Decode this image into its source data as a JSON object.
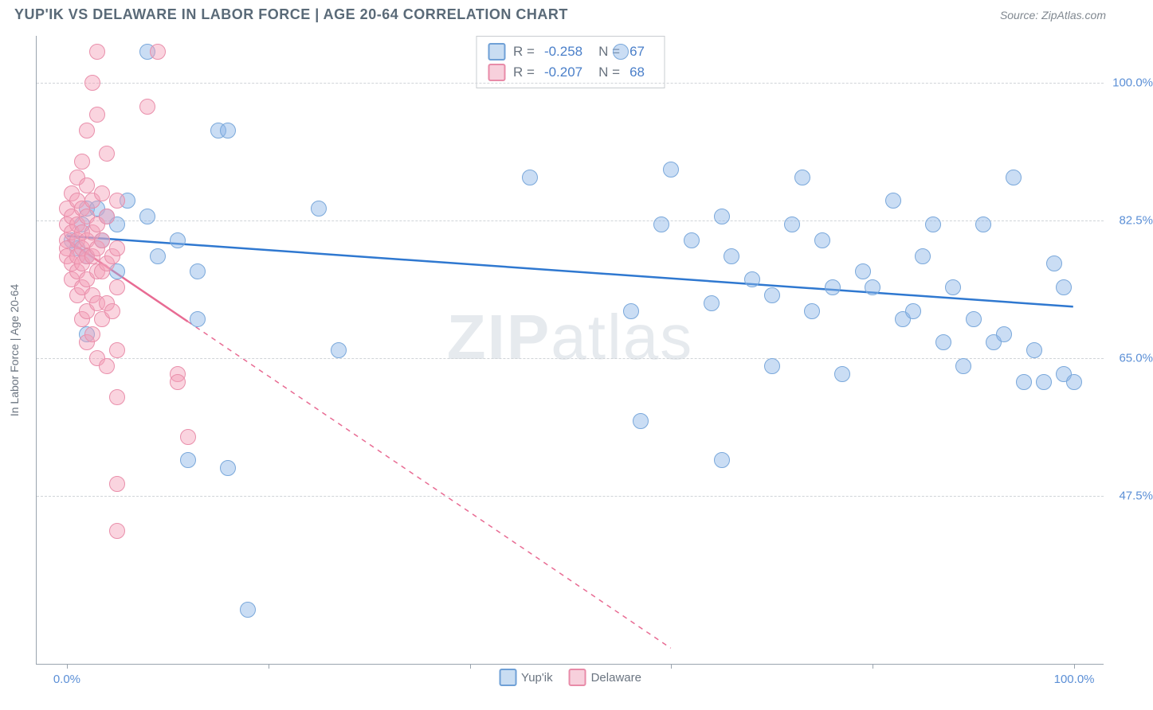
{
  "header": {
    "title": "YUP'IK VS DELAWARE IN LABOR FORCE | AGE 20-64 CORRELATION CHART",
    "source": "Source: ZipAtlas.com"
  },
  "watermark": {
    "part1": "ZIP",
    "part2": "atlas"
  },
  "chart": {
    "type": "scatter",
    "y_axis_label": "In Labor Force | Age 20-64",
    "background_color": "#ffffff",
    "grid_color": "#d0d4d8",
    "axis_color": "#9aa4ae",
    "tick_label_color": "#5b8fd6",
    "x_range": [
      -3,
      103
    ],
    "y_range": [
      26,
      106
    ],
    "y_ticks": [
      {
        "value": 47.5,
        "label": "47.5%"
      },
      {
        "value": 65.0,
        "label": "65.0%"
      },
      {
        "value": 82.5,
        "label": "82.5%"
      },
      {
        "value": 100.0,
        "label": "100.0%"
      }
    ],
    "x_ticks": [
      0,
      20,
      40,
      60,
      80,
      100
    ],
    "x_tick_labels": [
      {
        "value": 0,
        "label": "0.0%"
      },
      {
        "value": 100,
        "label": "100.0%"
      }
    ],
    "marker_radius": 10,
    "series": [
      {
        "name": "Yup'ik",
        "fill_color": "rgba(138,180,230,0.45)",
        "stroke_color": "#7aa8db",
        "swatch_fill": "#c9ddf2",
        "swatch_border": "#6fa0d6",
        "R": "-0.258",
        "N": "67",
        "regression": {
          "color": "#2f78d0",
          "width": 2.5,
          "dash_from_x": null,
          "start": {
            "x": 0,
            "y": 80.5
          },
          "end": {
            "x": 100,
            "y": 71.5
          }
        },
        "points": [
          {
            "x": 0.5,
            "y": 80
          },
          {
            "x": 1,
            "y": 79
          },
          {
            "x": 1.5,
            "y": 82
          },
          {
            "x": 2,
            "y": 84
          },
          {
            "x": 2,
            "y": 78
          },
          {
            "x": 2,
            "y": 68
          },
          {
            "x": 3,
            "y": 84
          },
          {
            "x": 3.5,
            "y": 80
          },
          {
            "x": 4,
            "y": 83
          },
          {
            "x": 5,
            "y": 82
          },
          {
            "x": 5,
            "y": 76
          },
          {
            "x": 6,
            "y": 85
          },
          {
            "x": 8,
            "y": 104
          },
          {
            "x": 8,
            "y": 83
          },
          {
            "x": 9,
            "y": 78
          },
          {
            "x": 11,
            "y": 80
          },
          {
            "x": 12,
            "y": 52
          },
          {
            "x": 13,
            "y": 76
          },
          {
            "x": 13,
            "y": 70
          },
          {
            "x": 15,
            "y": 94
          },
          {
            "x": 16,
            "y": 94
          },
          {
            "x": 16,
            "y": 51
          },
          {
            "x": 18,
            "y": 33
          },
          {
            "x": 25,
            "y": 84
          },
          {
            "x": 27,
            "y": 66
          },
          {
            "x": 46,
            "y": 88
          },
          {
            "x": 55,
            "y": 104
          },
          {
            "x": 56,
            "y": 71
          },
          {
            "x": 57,
            "y": 57
          },
          {
            "x": 59,
            "y": 82
          },
          {
            "x": 60,
            "y": 89
          },
          {
            "x": 62,
            "y": 80
          },
          {
            "x": 64,
            "y": 72
          },
          {
            "x": 65,
            "y": 83
          },
          {
            "x": 65,
            "y": 52
          },
          {
            "x": 66,
            "y": 78
          },
          {
            "x": 68,
            "y": 75
          },
          {
            "x": 70,
            "y": 73
          },
          {
            "x": 70,
            "y": 64
          },
          {
            "x": 72,
            "y": 82
          },
          {
            "x": 73,
            "y": 88
          },
          {
            "x": 74,
            "y": 71
          },
          {
            "x": 75,
            "y": 80
          },
          {
            "x": 76,
            "y": 74
          },
          {
            "x": 77,
            "y": 63
          },
          {
            "x": 79,
            "y": 76
          },
          {
            "x": 80,
            "y": 74
          },
          {
            "x": 82,
            "y": 85
          },
          {
            "x": 83,
            "y": 70
          },
          {
            "x": 84,
            "y": 71
          },
          {
            "x": 85,
            "y": 78
          },
          {
            "x": 86,
            "y": 82
          },
          {
            "x": 87,
            "y": 67
          },
          {
            "x": 88,
            "y": 74
          },
          {
            "x": 89,
            "y": 64
          },
          {
            "x": 90,
            "y": 70
          },
          {
            "x": 91,
            "y": 82
          },
          {
            "x": 92,
            "y": 67
          },
          {
            "x": 93,
            "y": 68
          },
          {
            "x": 94,
            "y": 88
          },
          {
            "x": 95,
            "y": 62
          },
          {
            "x": 96,
            "y": 66
          },
          {
            "x": 97,
            "y": 62
          },
          {
            "x": 98,
            "y": 77
          },
          {
            "x": 99,
            "y": 74
          },
          {
            "x": 99,
            "y": 63
          },
          {
            "x": 100,
            "y": 62
          }
        ]
      },
      {
        "name": "Delaware",
        "fill_color": "rgba(244,160,185,0.45)",
        "stroke_color": "#e98fab",
        "swatch_fill": "#f7d0dc",
        "swatch_border": "#e88ba8",
        "R": "-0.207",
        "N": "68",
        "regression": {
          "color": "#e86b93",
          "width": 2.5,
          "dash_from_x": 12,
          "start": {
            "x": 0,
            "y": 80
          },
          "end": {
            "x": 60,
            "y": 28
          }
        },
        "points": [
          {
            "x": 0,
            "y": 84
          },
          {
            "x": 0,
            "y": 82
          },
          {
            "x": 0,
            "y": 80
          },
          {
            "x": 0,
            "y": 79
          },
          {
            "x": 0,
            "y": 78
          },
          {
            "x": 0.5,
            "y": 86
          },
          {
            "x": 0.5,
            "y": 83
          },
          {
            "x": 0.5,
            "y": 81
          },
          {
            "x": 0.5,
            "y": 77
          },
          {
            "x": 0.5,
            "y": 75
          },
          {
            "x": 1,
            "y": 88
          },
          {
            "x": 1,
            "y": 85
          },
          {
            "x": 1,
            "y": 82
          },
          {
            "x": 1,
            "y": 80
          },
          {
            "x": 1,
            "y": 78
          },
          {
            "x": 1,
            "y": 76
          },
          {
            "x": 1,
            "y": 73
          },
          {
            "x": 1.5,
            "y": 90
          },
          {
            "x": 1.5,
            "y": 84
          },
          {
            "x": 1.5,
            "y": 81
          },
          {
            "x": 1.5,
            "y": 79
          },
          {
            "x": 1.5,
            "y": 77
          },
          {
            "x": 1.5,
            "y": 74
          },
          {
            "x": 1.5,
            "y": 70
          },
          {
            "x": 2,
            "y": 94
          },
          {
            "x": 2,
            "y": 87
          },
          {
            "x": 2,
            "y": 83
          },
          {
            "x": 2,
            "y": 80
          },
          {
            "x": 2,
            "y": 78
          },
          {
            "x": 2,
            "y": 75
          },
          {
            "x": 2,
            "y": 71
          },
          {
            "x": 2,
            "y": 67
          },
          {
            "x": 2.5,
            "y": 100
          },
          {
            "x": 2.5,
            "y": 85
          },
          {
            "x": 2.5,
            "y": 81
          },
          {
            "x": 2.5,
            "y": 78
          },
          {
            "x": 2.5,
            "y": 73
          },
          {
            "x": 2.5,
            "y": 68
          },
          {
            "x": 3,
            "y": 104
          },
          {
            "x": 3,
            "y": 96
          },
          {
            "x": 3,
            "y": 82
          },
          {
            "x": 3,
            "y": 79
          },
          {
            "x": 3,
            "y": 76
          },
          {
            "x": 3,
            "y": 72
          },
          {
            "x": 3,
            "y": 65
          },
          {
            "x": 3.5,
            "y": 86
          },
          {
            "x": 3.5,
            "y": 80
          },
          {
            "x": 3.5,
            "y": 76
          },
          {
            "x": 3.5,
            "y": 70
          },
          {
            "x": 4,
            "y": 91
          },
          {
            "x": 4,
            "y": 83
          },
          {
            "x": 4,
            "y": 77
          },
          {
            "x": 4,
            "y": 72
          },
          {
            "x": 4,
            "y": 64
          },
          {
            "x": 4.5,
            "y": 78
          },
          {
            "x": 4.5,
            "y": 71
          },
          {
            "x": 5,
            "y": 85
          },
          {
            "x": 5,
            "y": 79
          },
          {
            "x": 5,
            "y": 74
          },
          {
            "x": 5,
            "y": 66
          },
          {
            "x": 5,
            "y": 60
          },
          {
            "x": 5,
            "y": 49
          },
          {
            "x": 5,
            "y": 43
          },
          {
            "x": 8,
            "y": 97
          },
          {
            "x": 9,
            "y": 104
          },
          {
            "x": 11,
            "y": 63
          },
          {
            "x": 11,
            "y": 62
          },
          {
            "x": 12,
            "y": 55
          }
        ]
      }
    ],
    "footer_legend": [
      "Yup'ik",
      "Delaware"
    ]
  }
}
